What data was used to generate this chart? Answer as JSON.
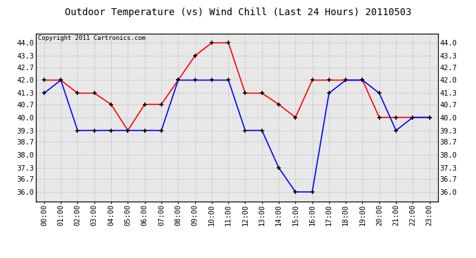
{
  "title": "Outdoor Temperature (vs) Wind Chill (Last 24 Hours) 20110503",
  "copyright": "Copyright 2011 Cartronics.com",
  "x_labels": [
    "00:00",
    "01:00",
    "02:00",
    "03:00",
    "04:00",
    "05:00",
    "06:00",
    "07:00",
    "08:00",
    "09:00",
    "10:00",
    "11:00",
    "12:00",
    "13:00",
    "14:00",
    "15:00",
    "16:00",
    "17:00",
    "18:00",
    "19:00",
    "20:00",
    "21:00",
    "22:00",
    "23:00"
  ],
  "temp_red": [
    42.0,
    42.0,
    41.3,
    41.3,
    40.7,
    39.3,
    40.7,
    40.7,
    42.0,
    43.3,
    44.0,
    44.0,
    41.3,
    41.3,
    40.7,
    40.0,
    42.0,
    42.0,
    42.0,
    42.0,
    40.0,
    40.0,
    40.0,
    40.0
  ],
  "wind_chill_blue": [
    41.3,
    42.0,
    39.3,
    39.3,
    39.3,
    39.3,
    39.3,
    39.3,
    42.0,
    42.0,
    42.0,
    42.0,
    39.3,
    39.3,
    37.3,
    36.0,
    36.0,
    41.3,
    42.0,
    42.0,
    41.3,
    39.3,
    40.0,
    40.0
  ],
  "ylim": [
    35.5,
    44.5
  ],
  "yticks": [
    36.0,
    36.7,
    37.3,
    38.0,
    38.7,
    39.3,
    40.0,
    40.7,
    41.3,
    42.0,
    42.7,
    43.3,
    44.0
  ],
  "red_color": "#ff0000",
  "blue_color": "#0000ff",
  "bg_color": "#ffffff",
  "plot_bg_color": "#e8e8e8",
  "grid_color": "#c8c8c8",
  "title_fontsize": 10,
  "tick_fontsize": 7.5,
  "copyright_fontsize": 6.5
}
